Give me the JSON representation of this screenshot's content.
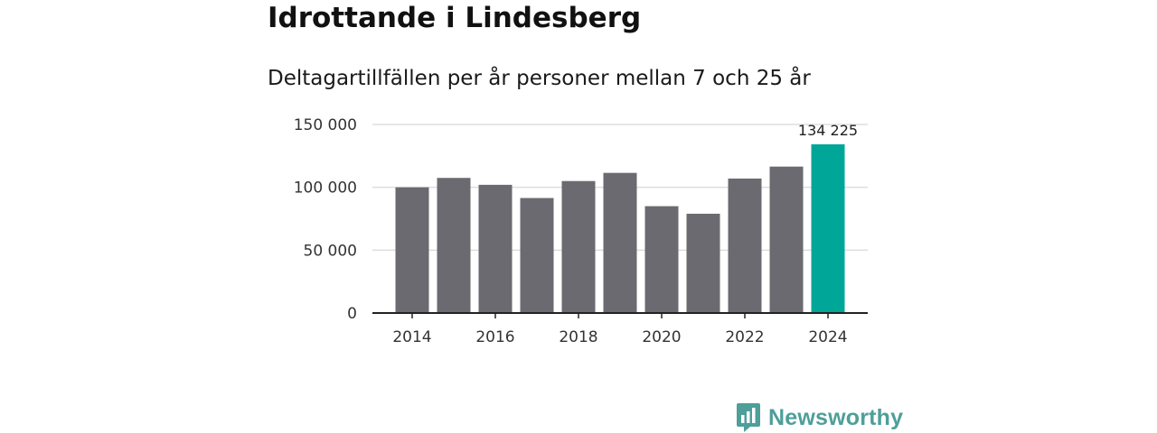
{
  "title": "Idrottande i Lindesberg",
  "subtitle": "Deltagartillfällen per år personer mellan 7 och 25 år",
  "brand": {
    "name": "Newsworthy",
    "icon": "newsworthy-logo-icon",
    "color": "#4e9f99"
  },
  "colors": {
    "bar": "#6b6a70",
    "highlight": "#00a697",
    "grid": "#dddddd",
    "axis": "#222222"
  },
  "chart_data": {
    "type": "bar",
    "title": "Idrottande i Lindesberg",
    "subtitle": "Deltagartillfällen per år personer mellan 7 och 25 år",
    "categories": [
      "2014",
      "2015",
      "2016",
      "2017",
      "2018",
      "2019",
      "2020",
      "2021",
      "2022",
      "2023",
      "2024"
    ],
    "values": [
      100000,
      107500,
      102000,
      91500,
      105000,
      111500,
      85000,
      79000,
      107000,
      116500,
      134225
    ],
    "highlight_index": 10,
    "highlight_label": "134 225",
    "x_tick_labels": [
      "2014",
      "2016",
      "2018",
      "2020",
      "2022",
      "2024"
    ],
    "x_tick_indices": [
      0,
      2,
      4,
      6,
      8,
      10
    ],
    "y_ticks": [
      0,
      50000,
      100000,
      150000
    ],
    "y_tick_labels": [
      "0",
      "50 000",
      "100 000",
      "150 000"
    ],
    "ylim": [
      0,
      150000
    ],
    "xlabel": "",
    "ylabel": "",
    "grid": true
  }
}
